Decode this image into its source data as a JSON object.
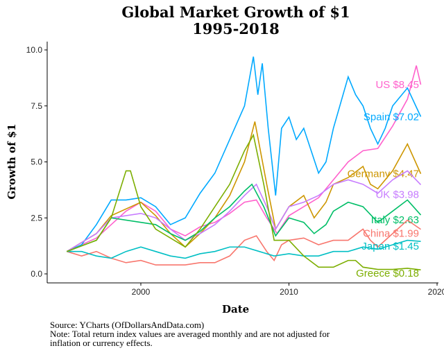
{
  "chart_data": {
    "type": "line",
    "title": "Global Market Growth of $1",
    "subtitle": "1995-2018",
    "xlabel": "Date",
    "ylabel": "Growth of $1",
    "xlim": [
      1994.3,
      2019.9
    ],
    "ylim": [
      -0.4,
      10.4
    ],
    "x_ticks": [
      "2000",
      "2010",
      "2020"
    ],
    "y_ticks": [
      "0.0",
      "2.5",
      "5.0",
      "7.5",
      "10.0"
    ],
    "grid": false,
    "legend": "direct labels at line ends",
    "series": [
      {
        "name": "US",
        "label": "US $8.45",
        "color": "#FF61CC",
        "points": [
          [
            1995,
            1
          ],
          [
            1997,
            1.6
          ],
          [
            1998,
            2.2
          ],
          [
            1999,
            2.8
          ],
          [
            2000,
            3.2
          ],
          [
            2001,
            2.8
          ],
          [
            2002,
            2.0
          ],
          [
            2003,
            1.7
          ],
          [
            2004,
            2.1
          ],
          [
            2005,
            2.3
          ],
          [
            2006,
            2.7
          ],
          [
            2007,
            3.2
          ],
          [
            2007.8,
            3.3
          ],
          [
            2008.5,
            2.5
          ],
          [
            2009.2,
            1.8
          ],
          [
            2010,
            2.6
          ],
          [
            2011,
            3.0
          ],
          [
            2012,
            3.4
          ],
          [
            2013,
            4.2
          ],
          [
            2014,
            5.0
          ],
          [
            2015,
            5.5
          ],
          [
            2016,
            5.6
          ],
          [
            2017,
            6.6
          ],
          [
            2018,
            7.8
          ],
          [
            2018.6,
            9.3
          ],
          [
            2018.9,
            8.45
          ]
        ]
      },
      {
        "name": "Spain",
        "label": "Spain $7.02",
        "color": "#00A9FF",
        "points": [
          [
            1995,
            1
          ],
          [
            1996,
            1.3
          ],
          [
            1997,
            2.2
          ],
          [
            1998,
            3.3
          ],
          [
            1999,
            3.3
          ],
          [
            2000,
            3.4
          ],
          [
            2001,
            3.0
          ],
          [
            2002,
            2.2
          ],
          [
            2003,
            2.5
          ],
          [
            2004,
            3.6
          ],
          [
            2005,
            4.5
          ],
          [
            2006,
            6.0
          ],
          [
            2007,
            7.5
          ],
          [
            2007.6,
            9.7
          ],
          [
            2007.9,
            8.0
          ],
          [
            2008.2,
            9.4
          ],
          [
            2008.6,
            6.5
          ],
          [
            2009.1,
            3.5
          ],
          [
            2009.5,
            6.5
          ],
          [
            2010,
            7.0
          ],
          [
            2010.5,
            6.0
          ],
          [
            2011,
            6.5
          ],
          [
            2011.5,
            5.5
          ],
          [
            2012,
            4.5
          ],
          [
            2012.5,
            5.0
          ],
          [
            2013,
            6.5
          ],
          [
            2014,
            8.8
          ],
          [
            2014.5,
            8.0
          ],
          [
            2015,
            7.5
          ],
          [
            2015.5,
            6.5
          ],
          [
            2016,
            5.8
          ],
          [
            2016.5,
            6.5
          ],
          [
            2017,
            7.5
          ],
          [
            2018,
            8.3
          ],
          [
            2018.9,
            7.02
          ]
        ]
      },
      {
        "name": "Germany",
        "label": "Germany $4.47",
        "color": "#CD9600",
        "points": [
          [
            1995,
            1
          ],
          [
            1997,
            1.8
          ],
          [
            1998,
            2.6
          ],
          [
            2000,
            3.2
          ],
          [
            2001,
            2.6
          ],
          [
            2002,
            1.8
          ],
          [
            2003,
            1.2
          ],
          [
            2004,
            1.8
          ],
          [
            2005,
            2.5
          ],
          [
            2006,
            3.5
          ],
          [
            2007,
            5.0
          ],
          [
            2007.7,
            6.8
          ],
          [
            2008.5,
            4.0
          ],
          [
            2009.1,
            2.0
          ],
          [
            2010,
            3.0
          ],
          [
            2011,
            3.5
          ],
          [
            2011.7,
            2.5
          ],
          [
            2012.5,
            3.2
          ],
          [
            2013,
            4.0
          ],
          [
            2014,
            4.3
          ],
          [
            2015,
            4.8
          ],
          [
            2015.5,
            4.0
          ],
          [
            2016,
            3.8
          ],
          [
            2017,
            4.6
          ],
          [
            2018,
            5.8
          ],
          [
            2018.9,
            4.47
          ]
        ]
      },
      {
        "name": "UK",
        "label": "UK $3.98",
        "color": "#C77CFF",
        "points": [
          [
            1995,
            1
          ],
          [
            1997,
            1.8
          ],
          [
            1998,
            2.5
          ],
          [
            2000,
            2.7
          ],
          [
            2001,
            2.5
          ],
          [
            2002,
            2.0
          ],
          [
            2003,
            1.5
          ],
          [
            2004,
            1.8
          ],
          [
            2005,
            2.2
          ],
          [
            2006,
            2.8
          ],
          [
            2007,
            3.5
          ],
          [
            2007.8,
            4.0
          ],
          [
            2008.5,
            3.0
          ],
          [
            2009.1,
            2.0
          ],
          [
            2010,
            3.0
          ],
          [
            2011,
            3.2
          ],
          [
            2012,
            3.5
          ],
          [
            2013,
            4.0
          ],
          [
            2014,
            4.2
          ],
          [
            2015,
            4.0
          ],
          [
            2016,
            3.6
          ],
          [
            2017,
            4.2
          ],
          [
            2018,
            4.6
          ],
          [
            2018.9,
            3.98
          ]
        ]
      },
      {
        "name": "Italy",
        "label": "Italy $2.63",
        "color": "#00BE67",
        "points": [
          [
            1995,
            1
          ],
          [
            1997,
            1.5
          ],
          [
            1998,
            2.5
          ],
          [
            2000,
            2.3
          ],
          [
            2001,
            2.2
          ],
          [
            2002,
            1.8
          ],
          [
            2003,
            1.5
          ],
          [
            2004,
            1.9
          ],
          [
            2005,
            2.5
          ],
          [
            2006,
            3.0
          ],
          [
            2007,
            3.7
          ],
          [
            2007.5,
            4.0
          ],
          [
            2008.3,
            3.0
          ],
          [
            2009.1,
            1.7
          ],
          [
            2010,
            2.5
          ],
          [
            2011,
            2.3
          ],
          [
            2011.7,
            1.8
          ],
          [
            2012.5,
            2.2
          ],
          [
            2013,
            2.8
          ],
          [
            2014,
            3.2
          ],
          [
            2015,
            3.0
          ],
          [
            2016,
            2.3
          ],
          [
            2017,
            2.8
          ],
          [
            2018,
            3.3
          ],
          [
            2018.9,
            2.63
          ]
        ]
      },
      {
        "name": "China",
        "label": "China $1.99",
        "color": "#F8766D",
        "points": [
          [
            1995,
            1
          ],
          [
            1996,
            0.8
          ],
          [
            1997,
            1.0
          ],
          [
            1998,
            0.7
          ],
          [
            1999,
            0.5
          ],
          [
            2000,
            0.6
          ],
          [
            2001,
            0.4
          ],
          [
            2002,
            0.4
          ],
          [
            2003,
            0.4
          ],
          [
            2004,
            0.5
          ],
          [
            2005,
            0.5
          ],
          [
            2006,
            0.8
          ],
          [
            2007,
            1.5
          ],
          [
            2007.8,
            1.7
          ],
          [
            2008.5,
            1.0
          ],
          [
            2009,
            0.6
          ],
          [
            2009.5,
            1.3
          ],
          [
            2010,
            1.5
          ],
          [
            2011,
            1.6
          ],
          [
            2012,
            1.3
          ],
          [
            2013,
            1.5
          ],
          [
            2014,
            1.5
          ],
          [
            2015,
            2.0
          ],
          [
            2015.5,
            1.5
          ],
          [
            2016,
            1.2
          ],
          [
            2017,
            1.8
          ],
          [
            2018,
            2.4
          ],
          [
            2018.9,
            1.99
          ]
        ]
      },
      {
        "name": "Japan",
        "label": "Japan $1.45",
        "color": "#00BFC4",
        "points": [
          [
            1995,
            1
          ],
          [
            1996,
            1.0
          ],
          [
            1997,
            0.8
          ],
          [
            1998,
            0.7
          ],
          [
            1999,
            1.0
          ],
          [
            2000,
            1.2
          ],
          [
            2001,
            1.0
          ],
          [
            2002,
            0.8
          ],
          [
            2003,
            0.7
          ],
          [
            2004,
            0.9
          ],
          [
            2005,
            1.0
          ],
          [
            2006,
            1.2
          ],
          [
            2007,
            1.2
          ],
          [
            2008,
            1.0
          ],
          [
            2009,
            0.8
          ],
          [
            2010,
            0.9
          ],
          [
            2011,
            0.8
          ],
          [
            2012,
            0.8
          ],
          [
            2013,
            1.0
          ],
          [
            2014,
            1.0
          ],
          [
            2015,
            1.2
          ],
          [
            2016,
            1.1
          ],
          [
            2017,
            1.3
          ],
          [
            2018,
            1.5
          ],
          [
            2018.9,
            1.45
          ]
        ]
      },
      {
        "name": "Greece",
        "label": "Greece $0.18",
        "color": "#7CAE00",
        "points": [
          [
            1995,
            1
          ],
          [
            1997,
            1.5
          ],
          [
            1998,
            2.5
          ],
          [
            1999,
            4.6
          ],
          [
            1999.3,
            4.6
          ],
          [
            2000,
            3.0
          ],
          [
            2001,
            2.0
          ],
          [
            2002,
            1.6
          ],
          [
            2003,
            1.2
          ],
          [
            2004,
            2.0
          ],
          [
            2005,
            3.0
          ],
          [
            2006,
            4.0
          ],
          [
            2007,
            5.5
          ],
          [
            2007.6,
            6.2
          ],
          [
            2008.3,
            4.0
          ],
          [
            2009,
            1.5
          ],
          [
            2010,
            1.5
          ],
          [
            2011,
            0.8
          ],
          [
            2012,
            0.3
          ],
          [
            2013,
            0.3
          ],
          [
            2014,
            0.6
          ],
          [
            2014.5,
            0.6
          ],
          [
            2015,
            0.3
          ],
          [
            2016,
            0.2
          ],
          [
            2017,
            0.2
          ],
          [
            2018,
            0.25
          ],
          [
            2018.9,
            0.18
          ]
        ]
      }
    ],
    "notes": [
      "Source: YCharts (OfDollarsAndData.com)",
      "Note: Total return index values are averaged monthly and are not adjusted for",
      "inflation or currency effects."
    ]
  }
}
